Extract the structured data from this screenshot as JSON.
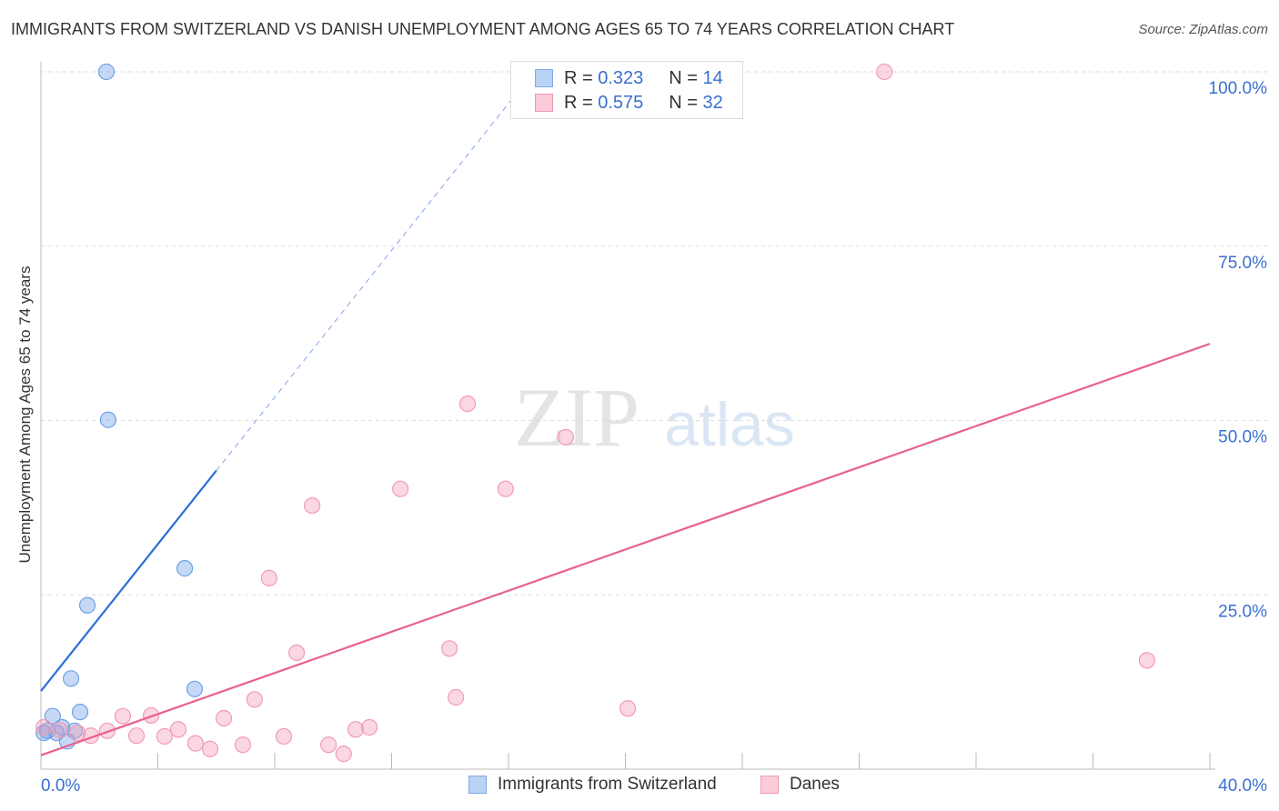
{
  "chart_data": {
    "type": "scatter",
    "title": "IMMIGRANTS FROM SWITZERLAND VS DANISH UNEMPLOYMENT AMONG AGES 65 TO 74 YEARS CORRELATION CHART",
    "source": "Source: ZipAtlas.com",
    "xlabel": "",
    "ylabel": "Unemployment Among Ages 65 to 74 years",
    "xlim": [
      0,
      40
    ],
    "ylim": [
      0,
      100
    ],
    "x_tick_labels": [
      "0.0%",
      "40.0%"
    ],
    "y_tick_labels": [
      "100.0%",
      "75.0%",
      "50.0%",
      "25.0%"
    ],
    "y_ticks": [
      100,
      75,
      50,
      25
    ],
    "watermark": "ZIPatlas",
    "series": [
      {
        "name": "Immigrants from Switzerland",
        "color": "#6fa0e8",
        "line_color": "#2a6dd6",
        "R": "0.323",
        "N": "14",
        "trend": {
          "x0": 0,
          "y0": 11.2,
          "x1": 6.0,
          "y1": 42.8,
          "dash_to_x": 16.9
        },
        "points": [
          [
            2.24,
            100
          ],
          [
            2.3,
            50.1
          ],
          [
            4.92,
            28.8
          ],
          [
            1.59,
            23.5
          ],
          [
            1.03,
            13.0
          ],
          [
            1.34,
            8.2
          ],
          [
            5.26,
            11.5
          ],
          [
            0.4,
            7.6
          ],
          [
            0.22,
            5.5
          ],
          [
            0.72,
            6.0
          ],
          [
            1.15,
            5.5
          ],
          [
            0.9,
            4.0
          ],
          [
            0.53,
            5.2
          ],
          [
            0.1,
            5.2
          ]
        ]
      },
      {
        "name": "Danes",
        "color": "#f29bb5",
        "line_color": "#e8608e",
        "R": "0.575",
        "N": "32",
        "trend": {
          "x0": 0,
          "y0": 2.0,
          "x1": 40,
          "y1": 61.0
        },
        "points": [
          [
            28.86,
            100
          ],
          [
            14.6,
            52.4
          ],
          [
            17.96,
            47.6
          ],
          [
            12.3,
            40.2
          ],
          [
            15.9,
            40.2
          ],
          [
            9.28,
            37.8
          ],
          [
            7.81,
            27.4
          ],
          [
            8.75,
            16.7
          ],
          [
            13.98,
            17.3
          ],
          [
            14.2,
            10.3
          ],
          [
            7.31,
            10.0
          ],
          [
            20.08,
            8.7
          ],
          [
            37.85,
            15.6
          ],
          [
            2.8,
            7.6
          ],
          [
            3.77,
            7.7
          ],
          [
            6.26,
            7.3
          ],
          [
            4.7,
            5.7
          ],
          [
            3.27,
            4.8
          ],
          [
            2.27,
            5.5
          ],
          [
            1.71,
            4.8
          ],
          [
            4.23,
            4.7
          ],
          [
            5.29,
            3.7
          ],
          [
            5.79,
            2.9
          ],
          [
            6.91,
            3.5
          ],
          [
            8.31,
            4.7
          ],
          [
            9.84,
            3.5
          ],
          [
            10.36,
            2.2
          ],
          [
            10.77,
            5.7
          ],
          [
            11.24,
            6.0
          ],
          [
            0.1,
            6.0
          ],
          [
            0.65,
            5.6
          ],
          [
            1.25,
            5.2
          ]
        ]
      }
    ],
    "legend_placement": "top-center"
  },
  "legend": {
    "r_label": "R =",
    "n_label": "N ="
  }
}
